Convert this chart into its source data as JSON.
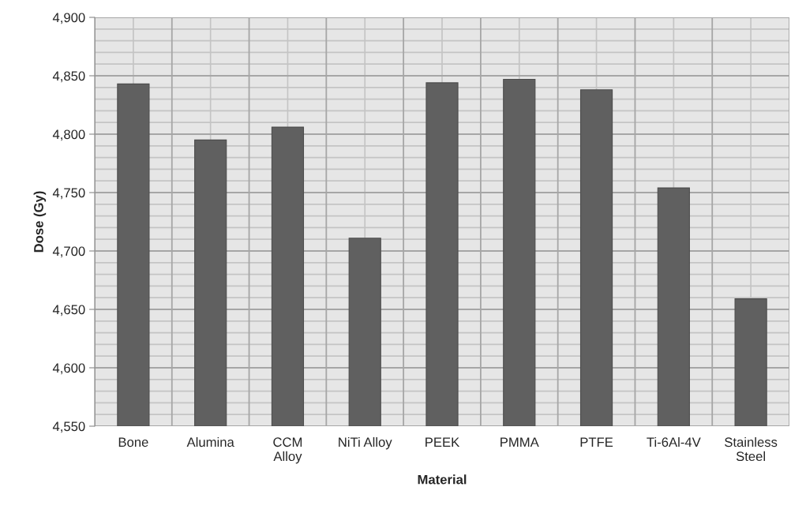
{
  "chart_data": {
    "type": "bar",
    "xlabel": "Material",
    "ylabel": "Dose (Gy)",
    "categories": [
      "Bone",
      "Alumina",
      "CCM\nAlloy",
      "NiTi Alloy",
      "PEEK",
      "PMMA",
      "PTFE",
      "Ti-6Al-4V",
      "Stainless\nSteel"
    ],
    "values": [
      4843,
      4795,
      4806,
      4711,
      4844,
      4847,
      4838,
      4754,
      4659
    ],
    "color": "#606060",
    "ylim": [
      4550,
      4900
    ],
    "yticks": [
      {
        "value": 4550,
        "label": "4,550"
      },
      {
        "value": 4600,
        "label": "4,600"
      },
      {
        "value": 4650,
        "label": "4,650"
      },
      {
        "value": 4700,
        "label": "4,700"
      },
      {
        "value": 4750,
        "label": "4,750"
      },
      {
        "value": 4800,
        "label": "4,800"
      },
      {
        "value": 4850,
        "label": "4,850"
      },
      {
        "value": 4900,
        "label": "4,900"
      }
    ],
    "grid": true
  }
}
